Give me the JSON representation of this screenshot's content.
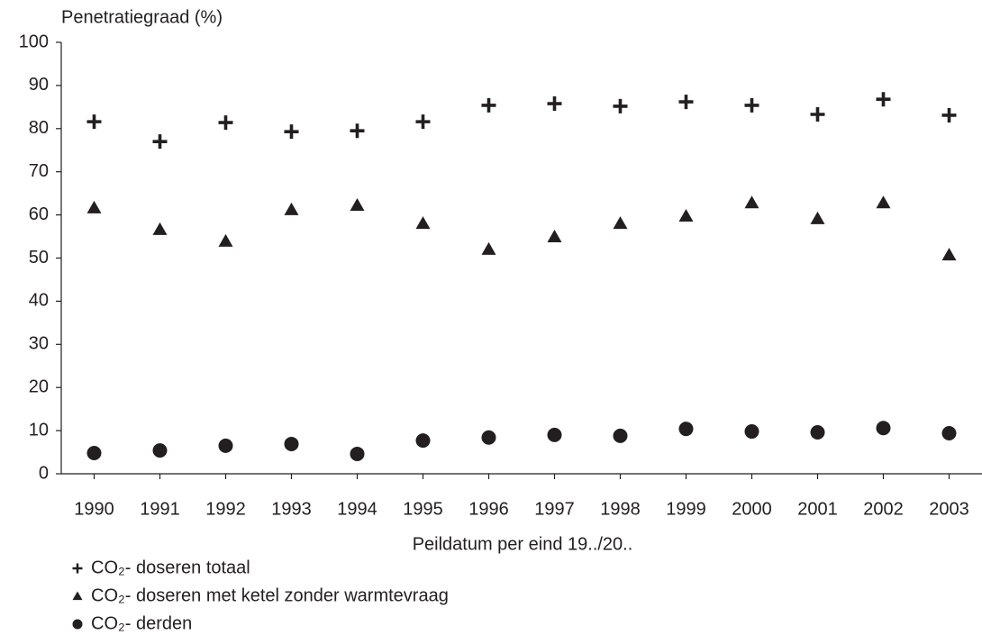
{
  "chart_data": {
    "type": "scatter",
    "y_label": "Penetratiegraad (%)",
    "x_label": "Peildatum per eind 19../20..",
    "categories": [
      "1990",
      "1991",
      "1992",
      "1993",
      "1994",
      "1995",
      "1996",
      "1997",
      "1998",
      "1999",
      "2000",
      "2001",
      "2002",
      "2003"
    ],
    "ylim": [
      0,
      100
    ],
    "yticks": [
      0,
      10,
      20,
      30,
      40,
      50,
      60,
      70,
      80,
      90,
      100
    ],
    "series": [
      {
        "name": "CO₂- doseren totaal",
        "color": "#231f20",
        "marker": "plus",
        "values": [
          81.6,
          77,
          81.4,
          79.3,
          79.5,
          81.6,
          85.4,
          85.8,
          85.2,
          86.2,
          85.4,
          83.3,
          86.8,
          83.1
        ]
      },
      {
        "name": "CO₂- doseren met ketel zonder warmtevraag",
        "color": "#231f20",
        "marker": "triangle",
        "values": [
          61.6,
          56.6,
          53.9,
          61.2,
          62.2,
          58,
          52,
          54.9,
          58,
          59.7,
          62.8,
          59.1,
          62.8,
          50.7
        ]
      },
      {
        "name": "CO₂- derden",
        "color": "#231f20",
        "marker": "circle",
        "values": [
          4.8,
          5.4,
          6.5,
          6.9,
          4.6,
          7.7,
          8.4,
          9,
          8.8,
          10.4,
          9.8,
          9.6,
          10.6,
          9.4
        ]
      }
    ]
  }
}
